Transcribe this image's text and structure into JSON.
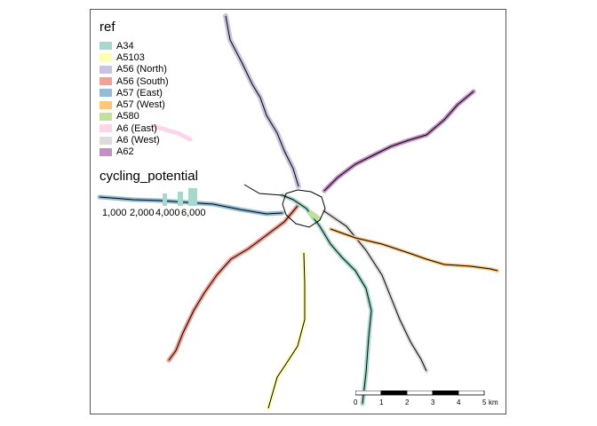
{
  "legend": {
    "ref_title": "ref",
    "items": [
      {
        "label": "A34",
        "color": "#a6d9ce"
      },
      {
        "label": "A5103",
        "color": "#ffffb3"
      },
      {
        "label": "A56 (North)",
        "color": "#c9c5e0"
      },
      {
        "label": "A56 (South)",
        "color": "#f1a092"
      },
      {
        "label": "A57 (East)",
        "color": "#93bdd6"
      },
      {
        "label": "A57 (West)",
        "color": "#fdc67a"
      },
      {
        "label": "A580",
        "color": "#c2e29a"
      },
      {
        "label": "A6 (East)",
        "color": "#fad6e8"
      },
      {
        "label": "A6 (West)",
        "color": "#dcdcdc"
      },
      {
        "label": "A62",
        "color": "#c38fc4"
      }
    ],
    "cycling_title": "cycling_potential",
    "cycling_labels": [
      "1,000",
      "2,000",
      "4,000",
      "6,000"
    ]
  },
  "scalebar": {
    "ticks": [
      "0",
      "1",
      "2",
      "3",
      "4",
      "5"
    ],
    "unit": "km"
  }
}
